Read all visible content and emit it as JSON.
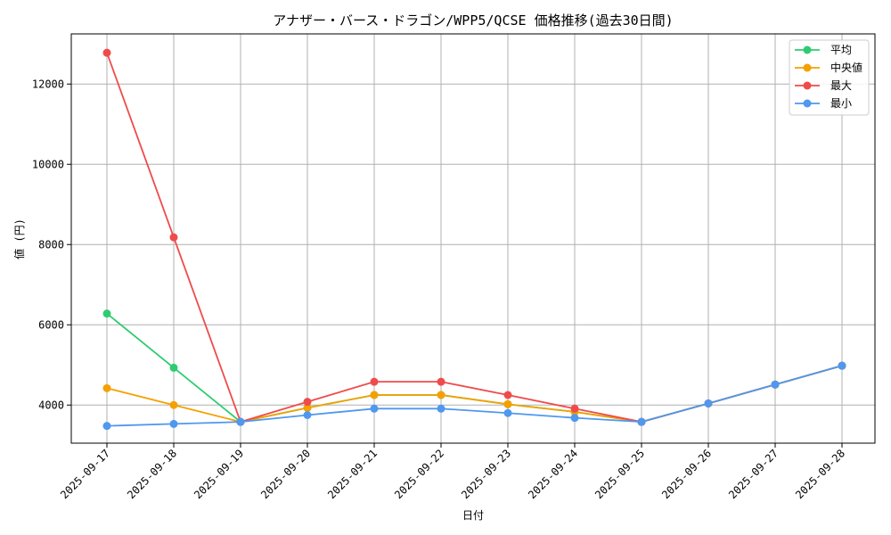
{
  "chart_data": {
    "type": "line",
    "title": "アナザー・バース・ドラゴン/WPP5/QCSE 価格推移(過去30日間)",
    "xlabel": "日付",
    "ylabel": "値 (円)",
    "categories": [
      "2025-09-17",
      "2025-09-18",
      "2025-09-19",
      "2025-09-20",
      "2025-09-21",
      "2025-09-22",
      "2025-09-23",
      "2025-09-24",
      "2025-09-25",
      "2025-09-26",
      "2025-09-27",
      "2025-09-28"
    ],
    "ylim": [
      3050,
      13250
    ],
    "yticks": [
      4000,
      6000,
      8000,
      10000,
      12000
    ],
    "grid": true,
    "legend_position": "top-right",
    "series": [
      {
        "name": "平均",
        "color": "#2ecc71",
        "values": [
          6280,
          4930,
          3580,
          3930,
          4250,
          4250,
          4020,
          3830,
          3580,
          4040,
          4510,
          4980
        ]
      },
      {
        "name": "中央値",
        "color": "#f5a000",
        "values": [
          4420,
          4000,
          3580,
          3930,
          4250,
          4250,
          4020,
          3830,
          3580,
          4040,
          4510,
          4980
        ]
      },
      {
        "name": "最大",
        "color": "#ef4b4b",
        "values": [
          12780,
          8180,
          3580,
          4080,
          4580,
          4580,
          4250,
          3910,
          3580,
          4040,
          4510,
          4980
        ]
      },
      {
        "name": "最小",
        "color": "#4f98ef",
        "values": [
          3480,
          3530,
          3580,
          3750,
          3910,
          3910,
          3800,
          3680,
          3580,
          4040,
          4510,
          4980
        ]
      }
    ]
  }
}
